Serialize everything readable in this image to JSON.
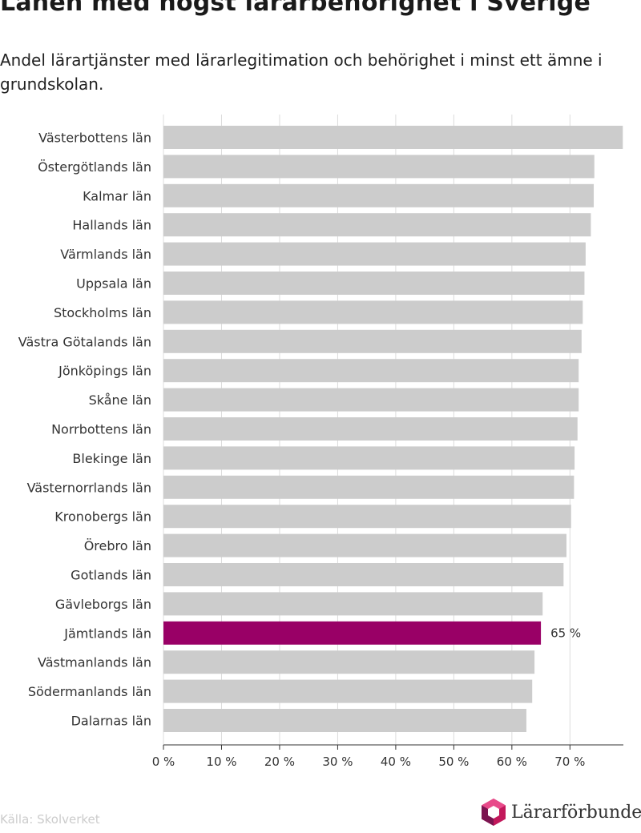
{
  "chart_data": {
    "type": "bar",
    "orientation": "horizontal",
    "title": "Länen med högst lärarbehörighet i Sverige",
    "subtitle": "Andel lärartjänster med lärarlegitimation och behörighet i minst ett ämne i grundskolan.",
    "categories": [
      "Västerbottens län",
      "Östergötlands län",
      "Kalmar län",
      "Hallands län",
      "Värmlands län",
      "Uppsala län",
      "Stockholms län",
      "Västra Götalands län",
      "Jönköpings län",
      "Skåne län",
      "Norrbottens län",
      "Blekinge län",
      "Västernorrlands län",
      "Kronobergs län",
      "Örebro län",
      "Gotlands län",
      "Gävleborgs län",
      "Jämtlands län",
      "Västmanlands län",
      "Södermanlands län",
      "Dalarnas län"
    ],
    "values": [
      79.1,
      74.2,
      74.1,
      73.6,
      72.7,
      72.5,
      72.2,
      72.0,
      71.5,
      71.5,
      71.3,
      70.8,
      70.7,
      70.2,
      69.4,
      68.9,
      65.3,
      65.0,
      63.9,
      63.5,
      62.5
    ],
    "highlight": {
      "category": "Jämtlands län",
      "label": "65 %",
      "color": "#990066"
    },
    "bar_color": "#cccccc",
    "xlim": [
      0,
      79.2
    ],
    "xticks": [
      0,
      10,
      20,
      30,
      40,
      50,
      60,
      70
    ],
    "xtick_labels": [
      "0 %",
      "10 %",
      "20 %",
      "30 %",
      "40 %",
      "50 %",
      "60 %",
      "70 %"
    ],
    "grid": true
  },
  "source": "Källa: Skolverket",
  "logo": {
    "text": "Lärarförbundet",
    "icon": "hexagon-logo-icon"
  }
}
